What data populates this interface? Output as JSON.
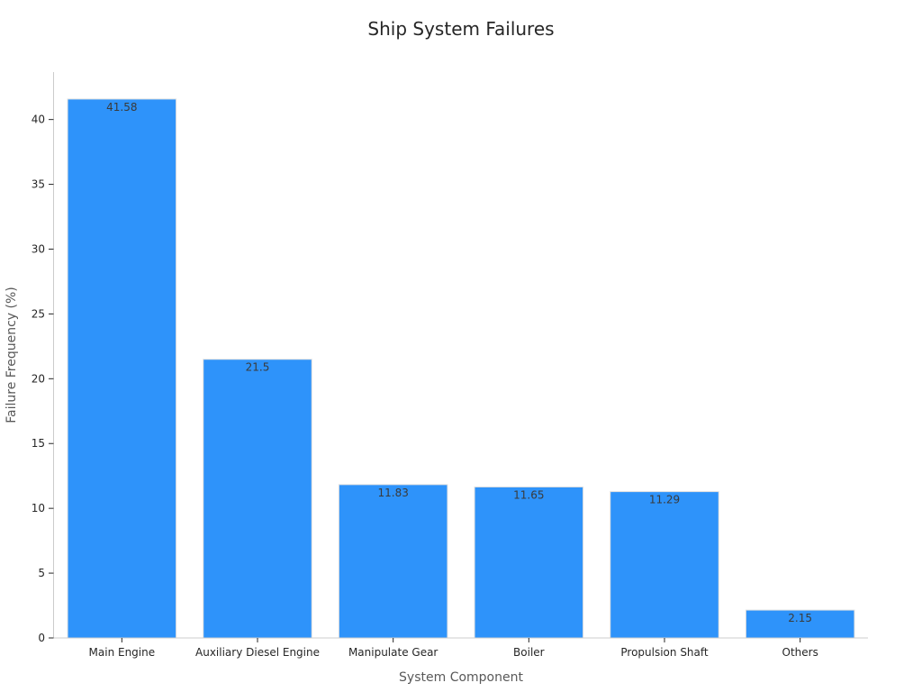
{
  "chart_data": {
    "type": "bar",
    "title": "Ship System Failures",
    "xlabel": "System Component",
    "ylabel": "Failure Frequency (%)",
    "categories": [
      "Main Engine",
      "Auxiliary Diesel Engine",
      "Manipulate Gear",
      "Boiler",
      "Propulsion Shaft",
      "Others"
    ],
    "values": [
      41.58,
      21.5,
      11.83,
      11.65,
      11.29,
      2.15
    ],
    "value_labels": [
      "41.58",
      "21.5",
      "11.83",
      "11.65",
      "11.29",
      "2.15"
    ],
    "ylim": [
      0,
      43.66
    ],
    "yticks": [
      0,
      5,
      10,
      15,
      20,
      25,
      30,
      35,
      40
    ],
    "ytick_labels": [
      "0",
      "5",
      "10",
      "15",
      "20",
      "25",
      "30",
      "35",
      "40"
    ],
    "grid": false,
    "bar_color": "#2e93fa"
  }
}
